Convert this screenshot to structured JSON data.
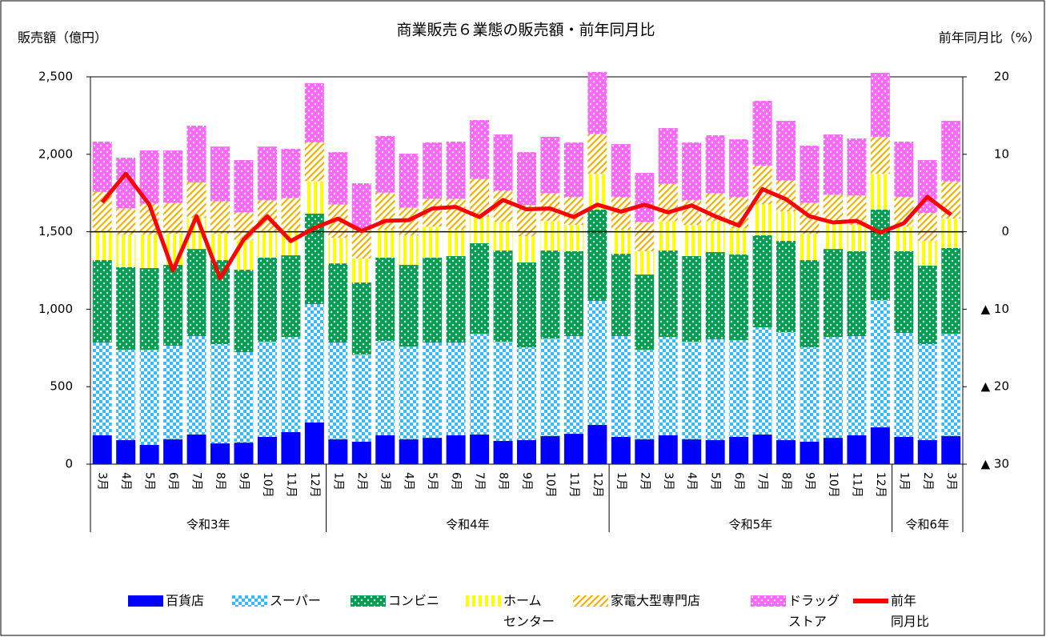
{
  "chart_data": {
    "type": "bar",
    "title": "商業販売６業態の販売額・前年同月比",
    "y_label": "販売額（億円）",
    "y2_label": "前年同月比（%）",
    "categories": [
      "3月",
      "4月",
      "5月",
      "6月",
      "7月",
      "8月",
      "9月",
      "10月",
      "11月",
      "12月",
      "1月",
      "2月",
      "3月",
      "4月",
      "5月",
      "6月",
      "7月",
      "8月",
      "9月",
      "10月",
      "11月",
      "12月",
      "1月",
      "2月",
      "3月",
      "4月",
      "5月",
      "6月",
      "7月",
      "8月",
      "9月",
      "10月",
      "11月",
      "12月",
      "1月",
      "2月",
      "3月"
    ],
    "category_groups": [
      {
        "label": "令和3年",
        "count": 10
      },
      {
        "label": "令和4年",
        "count": 12
      },
      {
        "label": "令和5年",
        "count": 12
      },
      {
        "label": "令和6年",
        "count": 3
      }
    ],
    "stacked": true,
    "ylim": [
      0,
      2500
    ],
    "yticks": [
      0,
      500,
      {
        "value": 1000,
        "label": "1,000"
      },
      {
        "value": 1500,
        "label": "1,500"
      },
      {
        "value": 2000,
        "label": "2,000"
      },
      {
        "value": 2500,
        "label": "2,500"
      }
    ],
    "y2lim": [
      -30,
      20
    ],
    "y2ticks": [
      20,
      10,
      0,
      {
        "value": -10,
        "label": "▲ 10"
      },
      {
        "value": -20,
        "label": "▲ 20"
      },
      {
        "value": -30,
        "label": "▲ 30"
      }
    ],
    "zero_line_y2": true,
    "series": [
      {
        "name": "百貨店",
        "color": "#0000ff",
        "pattern": "solid",
        "values": [
          186,
          155,
          124,
          160,
          191,
          134,
          139,
          176,
          207,
          269,
          160,
          145,
          186,
          160,
          170,
          186,
          191,
          150,
          155,
          181,
          196,
          253,
          176,
          160,
          186,
          160,
          155,
          176,
          191,
          155,
          145,
          170,
          186,
          238,
          176,
          155,
          181
        ]
      },
      {
        "name": "スーパー",
        "color": "#33bbff",
        "pattern": "checker",
        "values": [
          599,
          584,
          615,
          604,
          635,
          641,
          584,
          614,
          614,
          764,
          625,
          563,
          609,
          599,
          615,
          599,
          651,
          640,
          599,
          630,
          630,
          801,
          650,
          579,
          635,
          630,
          651,
          625,
          692,
          697,
          609,
          651,
          640,
          821,
          671,
          620,
          661
        ]
      },
      {
        "name": "コンビニ",
        "color": "#00a050",
        "pattern": "dots",
        "values": [
          532,
          532,
          527,
          522,
          563,
          542,
          532,
          543,
          527,
          584,
          511,
          465,
          538,
          527,
          548,
          558,
          584,
          589,
          548,
          568,
          548,
          589,
          532,
          485,
          558,
          553,
          563,
          552,
          594,
          589,
          563,
          568,
          548,
          584,
          527,
          506,
          553
        ]
      },
      {
        "name": "ホーム\nセンター",
        "color": "#ffff00",
        "pattern": "vstripe",
        "values": [
          185,
          210,
          215,
          200,
          200,
          170,
          190,
          170,
          160,
          210,
          165,
          155,
          180,
          190,
          200,
          170,
          170,
          185,
          170,
          190,
          170,
          230,
          155,
          150,
          190,
          200,
          200,
          170,
          200,
          190,
          170,
          170,
          170,
          230,
          160,
          160,
          190
        ]
      },
      {
        "name": "家電大型専門店",
        "color": "#f5b300",
        "pattern": "diag",
        "values": [
          255,
          170,
          200,
          200,
          230,
          210,
          180,
          200,
          210,
          250,
          215,
          190,
          240,
          180,
          180,
          200,
          245,
          200,
          200,
          180,
          180,
          260,
          210,
          190,
          240,
          160,
          180,
          200,
          250,
          200,
          200,
          180,
          190,
          240,
          190,
          180,
          240
        ]
      },
      {
        "name": "ドラッグ\nストア",
        "color": "#ff66ff",
        "pattern": "dots",
        "values": [
          325,
          327,
          344,
          339,
          366,
          353,
          338,
          347,
          317,
          382,
          338,
          295,
          365,
          348,
          363,
          369,
          380,
          364,
          342,
          364,
          352,
          398,
          343,
          316,
          360,
          373,
          374,
          374,
          418,
          385,
          369,
          389,
          368,
          413,
          358,
          342,
          391
        ]
      },
      {
        "name": "前年\n同月比",
        "color": "#ff0000",
        "type": "line",
        "axis": "y2",
        "values": [
          3.8,
          7.5,
          3.5,
          -5.0,
          2.0,
          -6.0,
          -1.0,
          2.0,
          -1.2,
          0.5,
          1.7,
          0.1,
          1.4,
          1.5,
          3.0,
          3.2,
          1.9,
          4.1,
          2.9,
          3.0,
          1.9,
          3.5,
          2.6,
          3.5,
          2.5,
          3.4,
          2.0,
          0.8,
          5.5,
          4.2,
          2.0,
          1.2,
          1.4,
          -0.1,
          1.1,
          4.5,
          2.2
        ]
      }
    ]
  }
}
